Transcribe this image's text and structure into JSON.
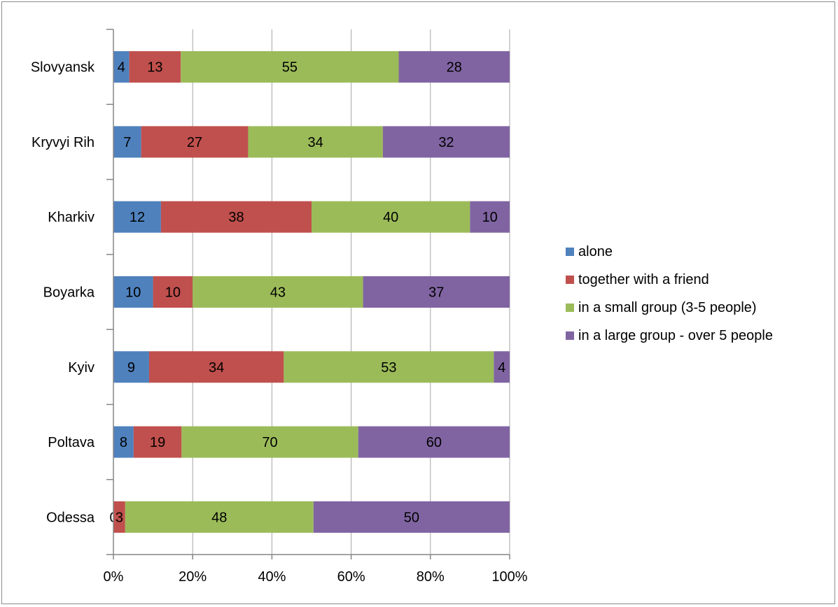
{
  "chart_data": {
    "type": "bar",
    "orientation": "horizontal",
    "stacked": "percent",
    "categories": [
      "Slovyansk",
      "Kryvyi Rih",
      "Kharkiv",
      "Boyarka",
      "Kyiv",
      "Poltava",
      "Odessa"
    ],
    "series": [
      {
        "name": "alone",
        "color": "#4f81bd",
        "values": [
          4,
          7,
          12,
          10,
          9,
          8,
          0
        ]
      },
      {
        "name": "together with a friend",
        "color": "#c0504d",
        "values": [
          13,
          27,
          38,
          10,
          34,
          19,
          3
        ]
      },
      {
        "name": "in a small group (3-5 people)",
        "color": "#9bbb59",
        "values": [
          55,
          34,
          40,
          43,
          53,
          70,
          48
        ]
      },
      {
        "name": "in a large group - over 5 people",
        "color": "#8064a2",
        "values": [
          28,
          32,
          10,
          37,
          4,
          60,
          50
        ]
      }
    ],
    "x_ticks": [
      "0%",
      "20%",
      "40%",
      "60%",
      "80%",
      "100%"
    ],
    "xlim": [
      0,
      100
    ],
    "grid": "vertical",
    "legend_position": "right",
    "data_labels": true
  }
}
